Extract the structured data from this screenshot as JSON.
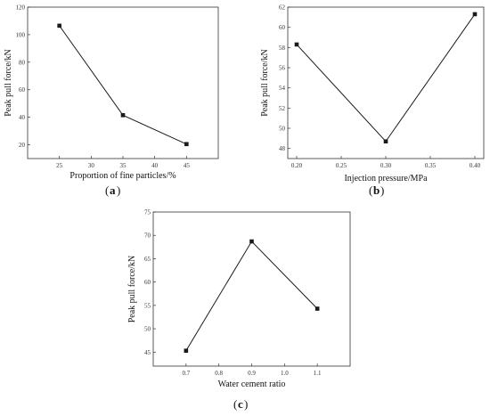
{
  "chart_data": [
    {
      "type": "line",
      "panel": "a",
      "xlabel": "Proportion of fine particles/%",
      "ylabel": "Peak pull force/kN",
      "x": [
        25,
        35,
        45
      ],
      "y": [
        106.5,
        41.5,
        20.5
      ],
      "xlim": [
        20,
        50
      ],
      "ylim": [
        10,
        120
      ],
      "xticks": [
        25,
        30,
        35,
        40,
        45
      ],
      "yticks": [
        20,
        40,
        60,
        80,
        100,
        120
      ],
      "xtick_labels": [
        "25",
        "30",
        "35",
        "40",
        "45"
      ],
      "ytick_labels": [
        "20",
        "40",
        "60",
        "80",
        "100",
        "120"
      ]
    },
    {
      "type": "line",
      "panel": "b",
      "xlabel": "Injection pressure/MPa",
      "ylabel": "Peak pull force/kN",
      "x": [
        0.2,
        0.3,
        0.4
      ],
      "y": [
        58.3,
        48.7,
        61.3
      ],
      "xlim": [
        0.19,
        0.41
      ],
      "ylim": [
        47,
        62
      ],
      "xticks": [
        0.2,
        0.25,
        0.3,
        0.35,
        0.4
      ],
      "yticks": [
        48,
        50,
        52,
        54,
        56,
        58,
        60,
        62
      ],
      "xtick_labels": [
        "0.20",
        "0.25",
        "0.30",
        "0.35",
        "0.40"
      ],
      "ytick_labels": [
        "48",
        "50",
        "52",
        "54",
        "56",
        "58",
        "60",
        "62"
      ]
    },
    {
      "type": "line",
      "panel": "c",
      "xlabel": "Water cement ratio",
      "ylabel": "Peak pull force/kN",
      "x": [
        0.7,
        0.9,
        1.1
      ],
      "y": [
        45.3,
        68.7,
        54.3
      ],
      "xlim": [
        0.6,
        1.2
      ],
      "ylim": [
        42,
        75
      ],
      "xticks": [
        0.7,
        0.8,
        0.9,
        1.0,
        1.1
      ],
      "yticks": [
        45,
        50,
        55,
        60,
        65,
        70,
        75
      ],
      "xtick_labels": [
        "0.7",
        "0.8",
        "0.9",
        "1.0",
        "1.1"
      ],
      "ytick_labels": [
        "45",
        "50",
        "55",
        "60",
        "65",
        "70",
        "75"
      ]
    }
  ],
  "labels": {
    "a": "a",
    "b": "b",
    "c": "c"
  },
  "colors": {
    "line": "#1a1a1a",
    "axis": "#333333"
  }
}
